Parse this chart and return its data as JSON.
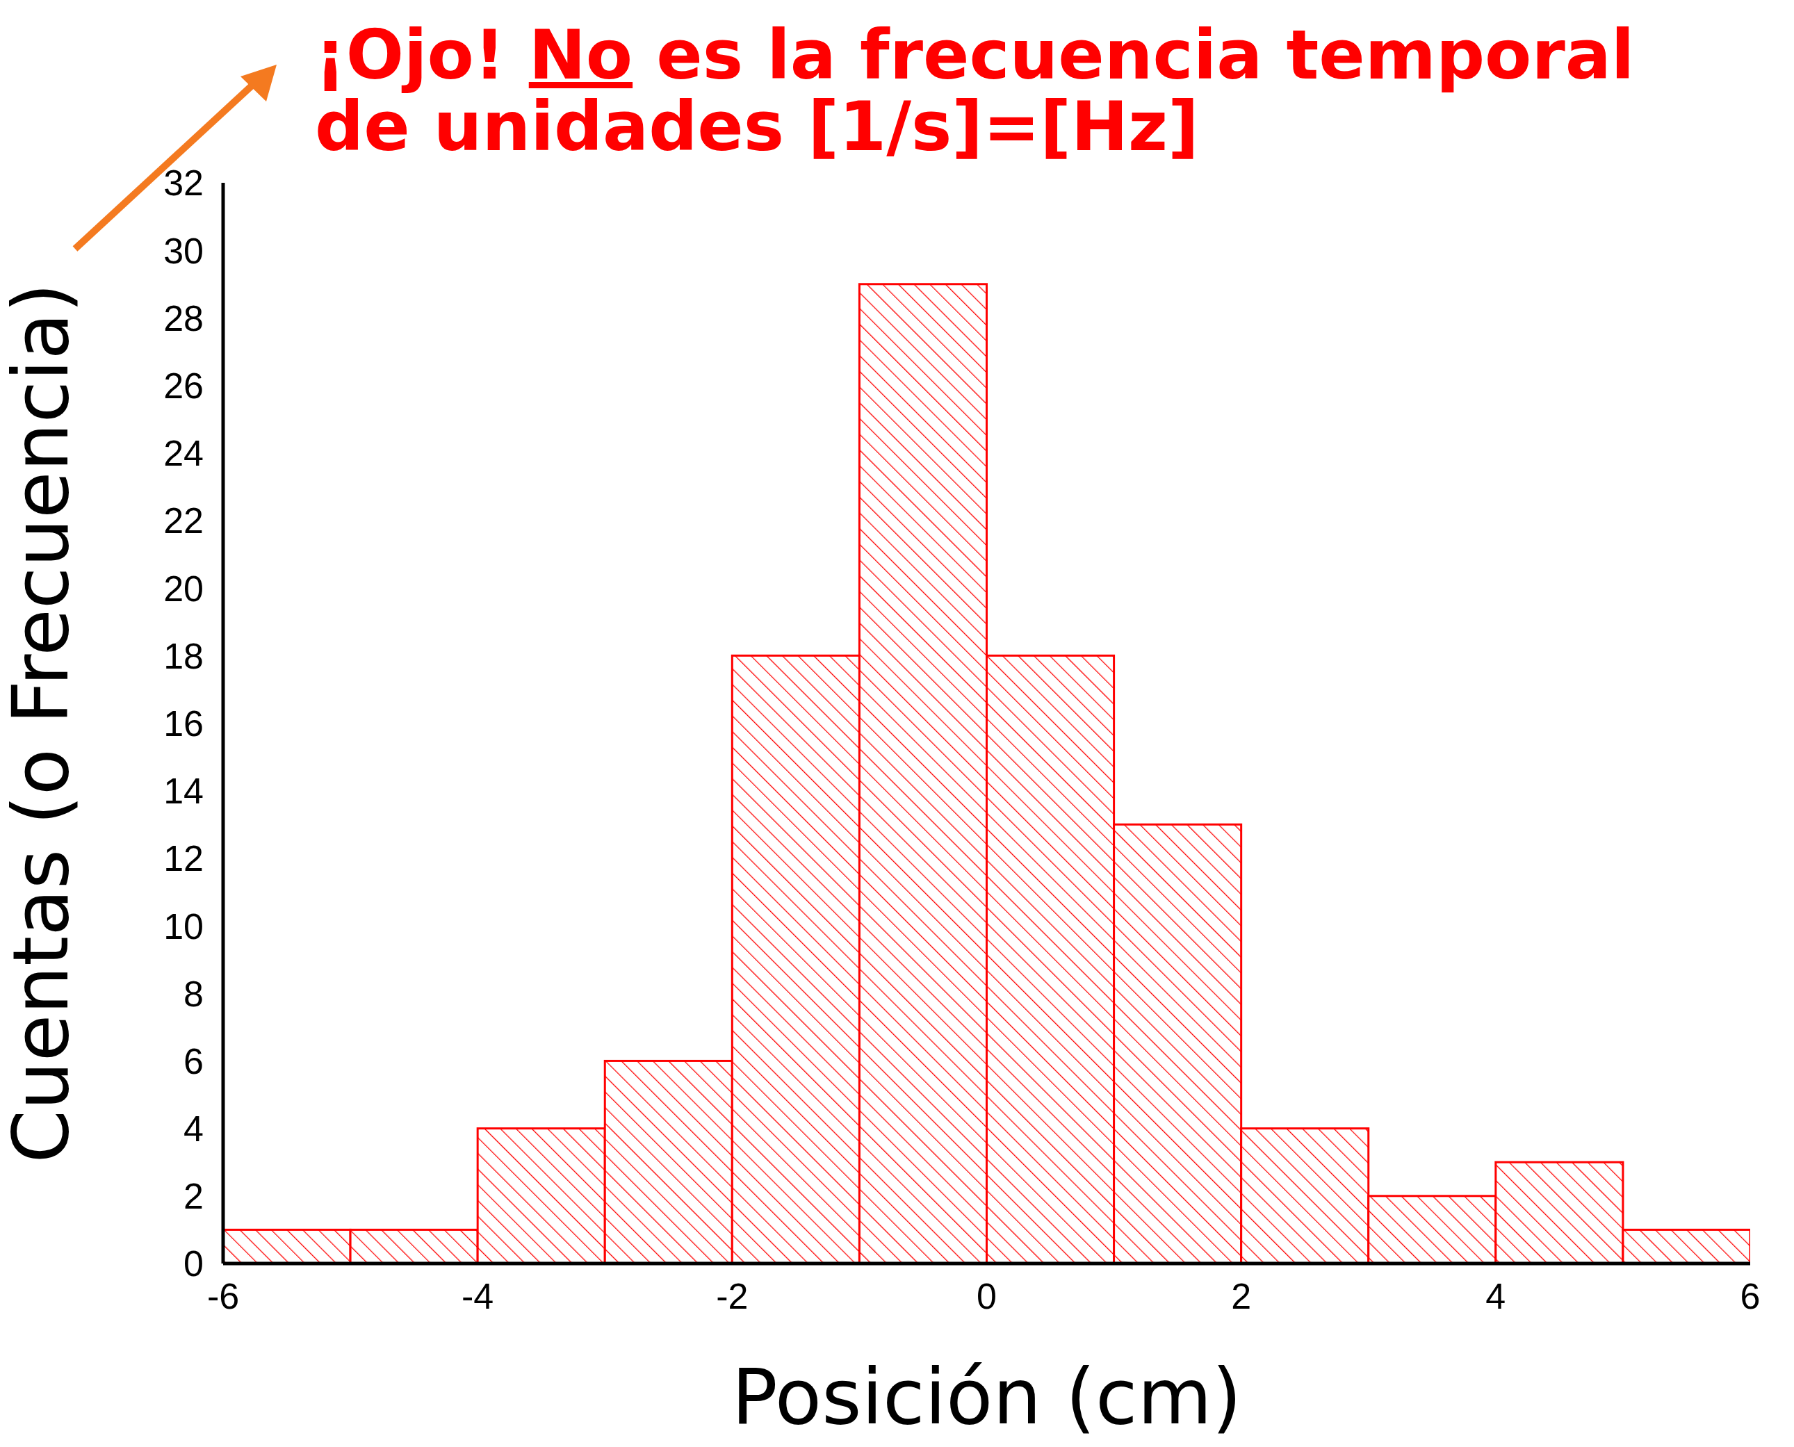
{
  "chart_data": {
    "type": "histogram",
    "title": "¡Ojo! No es la frecuencia temporal de unidades [1/s]=[Hz]",
    "xlabel": "Posición (cm)",
    "ylabel": "Cuentas (o Frecuencia)",
    "bins": [
      -6,
      -5,
      -4,
      -3,
      -2,
      -1,
      0,
      1,
      2,
      3,
      4,
      5,
      6
    ],
    "values": [
      1,
      1,
      4,
      6,
      18,
      29,
      18,
      13,
      4,
      2,
      3,
      1
    ],
    "color": "#ff0000",
    "xlim": [
      -6,
      6
    ],
    "xticks": [
      -6,
      -4,
      -2,
      0,
      2,
      4,
      6
    ],
    "ylim": [
      0,
      32
    ],
    "yticks": [
      0,
      2,
      4,
      6,
      8,
      10,
      12,
      14,
      16,
      18,
      20,
      22,
      24,
      26,
      28,
      30,
      32
    ],
    "grid": false,
    "legend": false
  }
}
